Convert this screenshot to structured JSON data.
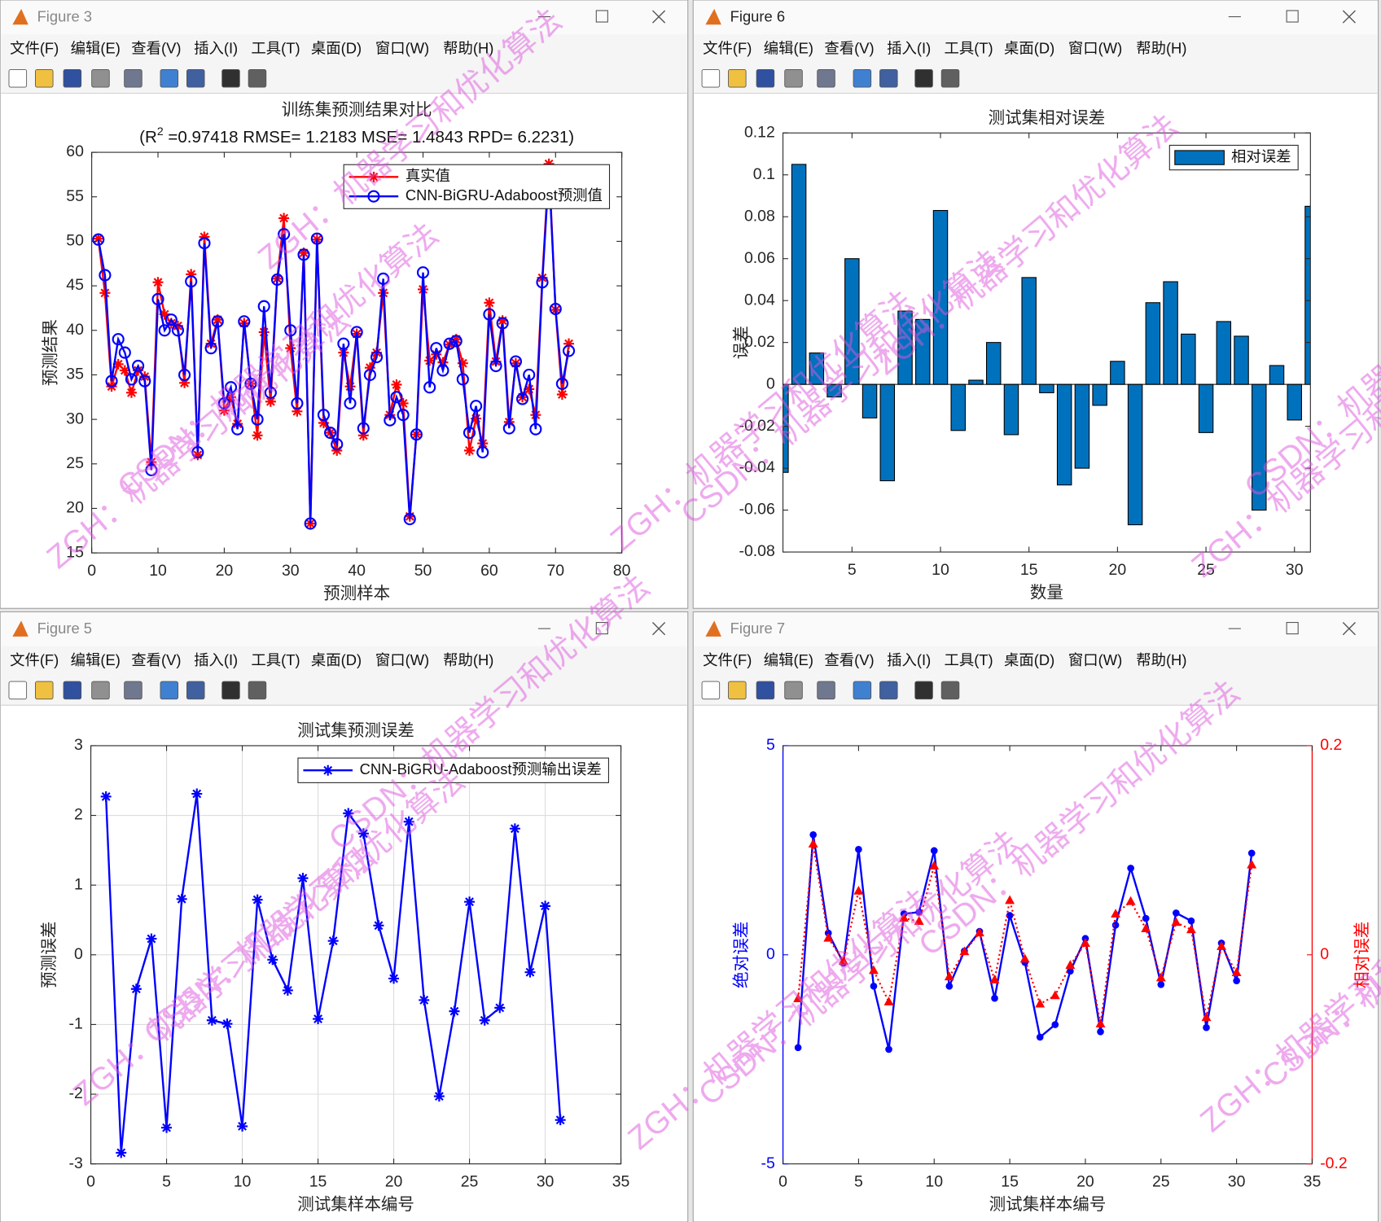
{
  "menu": [
    "文件(F)",
    "编辑(E)",
    "查看(V)",
    "插入(I)",
    "工具(T)",
    "桌面(D)",
    "窗口(W)",
    "帮助(H)"
  ],
  "watermarks": [
    "ZGH：机器学习和优化算法",
    "CSDN：机器学习和优化算法"
  ],
  "windows": [
    {
      "title": "Figure 3",
      "chart": {
        "type": "line",
        "title": "训练集预测结果对比",
        "subtitle": [
          "(R",
          "2",
          " =0.97418 RMSE= 1.2183 MSE= 1.4843 RPD= 6.2231)"
        ],
        "x_label": "预测样本",
        "y_label": "预测结果",
        "xlim": [
          0,
          80
        ],
        "xticks": [
          0,
          10,
          20,
          30,
          40,
          50,
          60,
          70,
          80
        ],
        "ylim": [
          15,
          60
        ],
        "yticks": [
          15,
          20,
          25,
          30,
          35,
          40,
          45,
          50,
          55,
          60
        ],
        "grid": false,
        "legend": "northeast",
        "x": [
          1,
          2,
          3,
          4,
          5,
          6,
          7,
          8,
          9,
          10,
          11,
          12,
          13,
          14,
          15,
          16,
          17,
          18,
          19,
          20,
          21,
          22,
          23,
          24,
          25,
          26,
          27,
          28,
          29,
          30,
          31,
          32,
          33,
          34,
          35,
          36,
          37,
          38,
          39,
          40,
          41,
          42,
          43,
          44,
          45,
          46,
          47,
          48,
          49,
          50,
          51,
          52,
          53,
          54,
          55,
          56,
          57,
          58,
          59,
          60,
          61,
          62,
          63,
          64,
          65,
          66,
          67,
          68,
          69,
          70,
          71,
          72
        ],
        "series": [
          {
            "name": "真实值",
            "color": "#ff0000",
            "marker": "asterisk",
            "values": [
              50.3,
              44.2,
              33.7,
              36.2,
              35.5,
              33,
              35.5,
              34.8,
              25.2,
              45.4,
              41.8,
              40.8,
              40.5,
              34.1,
              46.3,
              26,
              50.5,
              38.5,
              41.2,
              31,
              32.5,
              29.5,
              40.8,
              34,
              28.2,
              39.8,
              32,
              45.8,
              52.6,
              38,
              30.9,
              48.7,
              18.3,
              50.2,
              29.6,
              28.5,
              26.5,
              37.5,
              33.7,
              39.6,
              28.2,
              35.8,
              37.5,
              44.2,
              30.5,
              33.9,
              31.8,
              19.1,
              28.3,
              44.6,
              36.6,
              37.3,
              36.4,
              38.4,
              39,
              36.3,
              26.5,
              30.1,
              27.3,
              43.1,
              36.5,
              41.1,
              29.7,
              36.3,
              32.5,
              33.4,
              30.5,
              45.9,
              58.7,
              42.3,
              32.8,
              38.5
            ]
          },
          {
            "name": "CNN-BiGRU-Adaboost预测值",
            "color": "#0000ff",
            "marker": "circle",
            "values": [
              50.2,
              46.2,
              34.3,
              39,
              37.5,
              34.5,
              36,
              34.3,
              24.3,
              43.5,
              40,
              41.2,
              40,
              35,
              45.5,
              26.3,
              49.8,
              38,
              41,
              31.8,
              33.6,
              28.9,
              41,
              34,
              30,
              42.7,
              33,
              45.7,
              50.8,
              40,
              31.8,
              48.5,
              18.3,
              50.3,
              30.5,
              28.5,
              27.2,
              38.5,
              31.8,
              39.8,
              29,
              35,
              37,
              45.8,
              29.9,
              32.5,
              30.5,
              18.8,
              28.3,
              46.5,
              33.6,
              38,
              35.5,
              38.5,
              38.8,
              34.5,
              28.5,
              31.5,
              26.3,
              41.8,
              36,
              40.8,
              29,
              36.5,
              32.3,
              35,
              28.9,
              45.4,
              58,
              42.4,
              34,
              37.7
            ]
          }
        ]
      }
    },
    {
      "title": "Figure 6",
      "chart": {
        "type": "bar",
        "title": "测试集相对误差",
        "x_label": "数量",
        "y_label": "误差",
        "xlim": [
          1.1,
          30.9
        ],
        "xticks": [
          5,
          10,
          15,
          20,
          25,
          30
        ],
        "ylim": [
          -0.08,
          0.12
        ],
        "yticks": [
          -0.08,
          -0.06,
          -0.04,
          -0.02,
          0,
          0.02,
          0.04,
          0.06,
          0.08,
          0.1,
          0.12
        ],
        "grid": false,
        "legend": "northeast",
        "x": [
          1,
          2,
          3,
          4,
          5,
          6,
          7,
          8,
          9,
          10,
          11,
          12,
          13,
          14,
          15,
          16,
          17,
          18,
          19,
          20,
          21,
          22,
          23,
          24,
          25,
          26,
          27,
          28,
          29,
          30,
          31
        ],
        "series": [
          {
            "name": "相对误差",
            "color": "#0072bd",
            "values": [
              -0.042,
              0.105,
              0.015,
              -0.006,
              0.06,
              -0.016,
              -0.046,
              0.035,
              0.031,
              0.083,
              -0.022,
              0.002,
              0.02,
              -0.024,
              0.051,
              -0.004,
              -0.048,
              -0.04,
              -0.01,
              0.011,
              -0.067,
              0.039,
              0.049,
              0.024,
              -0.023,
              0.03,
              0.023,
              -0.06,
              0.009,
              -0.017,
              0.085
            ]
          }
        ]
      }
    },
    {
      "title": "Figure 5",
      "chart": {
        "type": "line",
        "title": "测试集预测误差",
        "x_label": "测试集样本编号",
        "y_label": "预测误差",
        "xlim": [
          0,
          35
        ],
        "xticks": [
          0,
          5,
          10,
          15,
          20,
          25,
          30,
          35
        ],
        "ylim": [
          -3,
          3
        ],
        "yticks": [
          -3,
          -2,
          -1,
          0,
          1,
          2,
          3
        ],
        "grid": true,
        "legend": "northeast",
        "x": [
          1,
          2,
          3,
          4,
          5,
          6,
          7,
          8,
          9,
          10,
          11,
          12,
          13,
          14,
          15,
          16,
          17,
          18,
          19,
          20,
          21,
          22,
          23,
          24,
          25,
          26,
          27,
          28,
          29,
          30,
          31
        ],
        "series": [
          {
            "name": "CNN-BiGRU-Adaboost预测输出误差",
            "color": "#0000ff",
            "marker": "asterisk",
            "values": [
              2.27,
              -2.84,
              -0.49,
              0.23,
              -2.48,
              0.8,
              2.31,
              -0.94,
              -0.99,
              -2.46,
              0.79,
              -0.07,
              -0.51,
              1.1,
              -0.92,
              0.2,
              2.03,
              1.74,
              0.42,
              -0.34,
              1.91,
              -0.65,
              -2.03,
              -0.81,
              0.76,
              -0.94,
              -0.76,
              1.81,
              -0.25,
              0.7,
              -2.37
            ]
          }
        ]
      }
    },
    {
      "title": "Figure 7",
      "chart": {
        "type": "line",
        "x_label": "测试集样本编号",
        "y_label": "绝对误差",
        "y2_label": "相对误差",
        "xlim": [
          0,
          35
        ],
        "xticks": [
          0,
          5,
          10,
          15,
          20,
          25,
          30,
          35
        ],
        "ylim": [
          -5,
          5
        ],
        "yticks": [
          -5,
          0,
          5
        ],
        "ycolor": "#0000ff",
        "y2lim": [
          -0.2,
          0.2
        ],
        "y2ticks": [
          -0.2,
          0,
          0.2
        ],
        "y2color": "#ff0000",
        "grid": false,
        "x": [
          1,
          2,
          3,
          4,
          5,
          6,
          7,
          8,
          9,
          10,
          11,
          12,
          13,
          14,
          15,
          16,
          17,
          18,
          19,
          20,
          21,
          22,
          23,
          24,
          25,
          26,
          27,
          28,
          29,
          30,
          31
        ],
        "series": [
          {
            "color": "#0000ff",
            "marker": "dot",
            "values": [
              -2.22,
              2.87,
              0.52,
              -0.2,
              2.52,
              -0.75,
              -2.26,
              0.98,
              1.02,
              2.49,
              -0.75,
              0.09,
              0.56,
              -1.04,
              0.94,
              -0.18,
              -1.97,
              -1.67,
              -0.39,
              0.39,
              -1.84,
              0.71,
              2.07,
              0.87,
              -0.71,
              1,
              0.81,
              -1.74,
              0.28,
              -0.62,
              2.43
            ]
          },
          {
            "color": "#ff0000",
            "marker": "triangle",
            "linestyle": "dotted",
            "axis": "y2",
            "values": [
              -0.042,
              0.106,
              0.016,
              -0.006,
              0.061,
              -0.015,
              -0.045,
              0.035,
              0.032,
              0.085,
              -0.021,
              0.003,
              0.021,
              -0.024,
              0.052,
              -0.004,
              -0.047,
              -0.039,
              -0.01,
              0.011,
              -0.066,
              0.039,
              0.051,
              0.025,
              -0.022,
              0.031,
              0.024,
              -0.06,
              0.008,
              -0.017,
              0.086
            ]
          }
        ]
      }
    }
  ]
}
